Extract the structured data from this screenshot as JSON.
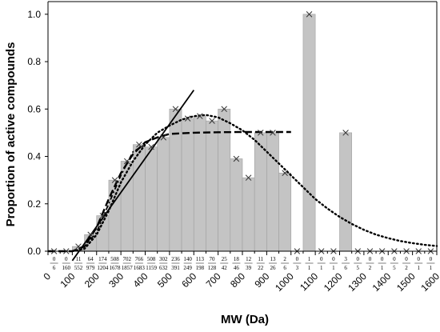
{
  "chart_data": {
    "type": "bar",
    "xlabel": "MW (Da)",
    "ylabel": "Proportion of active compounds",
    "xlim": [
      0,
      1600
    ],
    "ylim": [
      0,
      1.05
    ],
    "xticks": [
      "0",
      "100",
      "200",
      "300",
      "400",
      "500",
      "600",
      "700",
      "800",
      "900",
      "1000",
      "1100",
      "1200",
      "1300",
      "1400",
      "1500",
      "1600"
    ],
    "yticks": [
      "0.0",
      "0.2",
      "0.4",
      "0.6",
      "0.8",
      "1.0"
    ],
    "bin_width": 50,
    "bins": [
      {
        "x": 25,
        "value": 0,
        "active": "0",
        "total": "6"
      },
      {
        "x": 75,
        "value": 0,
        "active": "0",
        "total": "160"
      },
      {
        "x": 125,
        "value": 0.02,
        "active": "11",
        "total": "552"
      },
      {
        "x": 175,
        "value": 0.07,
        "active": "64",
        "total": "979"
      },
      {
        "x": 225,
        "value": 0.15,
        "active": "174",
        "total": "1204"
      },
      {
        "x": 275,
        "value": 0.3,
        "active": "508",
        "total": "1678"
      },
      {
        "x": 325,
        "value": 0.38,
        "active": "702",
        "total": "1857"
      },
      {
        "x": 375,
        "value": 0.45,
        "active": "766",
        "total": "1683"
      },
      {
        "x": 425,
        "value": 0.44,
        "active": "508",
        "total": "1159"
      },
      {
        "x": 475,
        "value": 0.48,
        "active": "302",
        "total": "632"
      },
      {
        "x": 525,
        "value": 0.6,
        "active": "236",
        "total": "391"
      },
      {
        "x": 575,
        "value": 0.56,
        "active": "140",
        "total": "249"
      },
      {
        "x": 625,
        "value": 0.57,
        "active": "113",
        "total": "198"
      },
      {
        "x": 675,
        "value": 0.55,
        "active": "70",
        "total": "128"
      },
      {
        "x": 725,
        "value": 0.6,
        "active": "25",
        "total": "42"
      },
      {
        "x": 775,
        "value": 0.39,
        "active": "18",
        "total": "46"
      },
      {
        "x": 825,
        "value": 0.31,
        "active": "12",
        "total": "39"
      },
      {
        "x": 875,
        "value": 0.5,
        "active": "11",
        "total": "22"
      },
      {
        "x": 925,
        "value": 0.5,
        "active": "13",
        "total": "26"
      },
      {
        "x": 975,
        "value": 0.33,
        "active": "2",
        "total": "6"
      },
      {
        "x": 1025,
        "value": 0,
        "active": "0",
        "total": "3"
      },
      {
        "x": 1075,
        "value": 1.0,
        "active": "1",
        "total": "1"
      },
      {
        "x": 1125,
        "value": 0,
        "active": "0",
        "total": "1"
      },
      {
        "x": 1175,
        "value": 0,
        "active": "0",
        "total": "1"
      },
      {
        "x": 1225,
        "value": 0.5,
        "active": "3",
        "total": "6"
      },
      {
        "x": 1275,
        "value": 0,
        "active": "0",
        "total": "5"
      },
      {
        "x": 1325,
        "value": 0,
        "active": "0",
        "total": "2"
      },
      {
        "x": 1375,
        "value": 0,
        "active": "0",
        "total": "1"
      },
      {
        "x": 1425,
        "value": 0,
        "active": "0",
        "total": "5"
      },
      {
        "x": 1475,
        "value": 0,
        "active": "0",
        "total": "2"
      },
      {
        "x": 1525,
        "value": 0,
        "active": "0",
        "total": "1"
      },
      {
        "x": 1575,
        "value": 0,
        "active": "0",
        "total": "1"
      }
    ],
    "curves": [
      {
        "style": "solid",
        "points": [
          [
            100,
            -0.04
          ],
          [
            600,
            0.68
          ]
        ]
      },
      {
        "style": "dashed",
        "points": [
          [
            0,
            0
          ],
          [
            100,
            0
          ],
          [
            150,
            0.02
          ],
          [
            200,
            0.1
          ],
          [
            250,
            0.22
          ],
          [
            300,
            0.33
          ],
          [
            350,
            0.41
          ],
          [
            400,
            0.46
          ],
          [
            450,
            0.48
          ],
          [
            500,
            0.495
          ],
          [
            600,
            0.5
          ],
          [
            700,
            0.502
          ],
          [
            800,
            0.503
          ],
          [
            1000,
            0.503
          ]
        ]
      },
      {
        "style": "dash-dot",
        "points": [
          [
            100,
            0
          ],
          [
            150,
            0.02
          ],
          [
            200,
            0.08
          ],
          [
            250,
            0.2
          ],
          [
            300,
            0.32
          ],
          [
            350,
            0.42
          ],
          [
            400,
            0.45
          ]
        ]
      },
      {
        "style": "dotted",
        "points": [
          [
            100,
            0
          ],
          [
            150,
            0.01
          ],
          [
            200,
            0.07
          ],
          [
            250,
            0.17
          ],
          [
            300,
            0.29
          ],
          [
            350,
            0.38
          ],
          [
            400,
            0.45
          ],
          [
            450,
            0.5
          ],
          [
            500,
            0.53
          ],
          [
            550,
            0.555
          ],
          [
            600,
            0.57
          ],
          [
            650,
            0.575
          ],
          [
            700,
            0.565
          ],
          [
            750,
            0.54
          ],
          [
            800,
            0.51
          ],
          [
            850,
            0.47
          ],
          [
            900,
            0.42
          ],
          [
            950,
            0.37
          ],
          [
            1000,
            0.32
          ],
          [
            1050,
            0.27
          ],
          [
            1100,
            0.22
          ],
          [
            1150,
            0.18
          ],
          [
            1200,
            0.145
          ],
          [
            1250,
            0.115
          ],
          [
            1300,
            0.09
          ],
          [
            1350,
            0.07
          ],
          [
            1400,
            0.055
          ],
          [
            1450,
            0.043
          ],
          [
            1500,
            0.034
          ],
          [
            1550,
            0.027
          ],
          [
            1600,
            0.022
          ]
        ]
      }
    ],
    "bar_color": "#c4c4c4",
    "grid": false,
    "legend": "none"
  }
}
